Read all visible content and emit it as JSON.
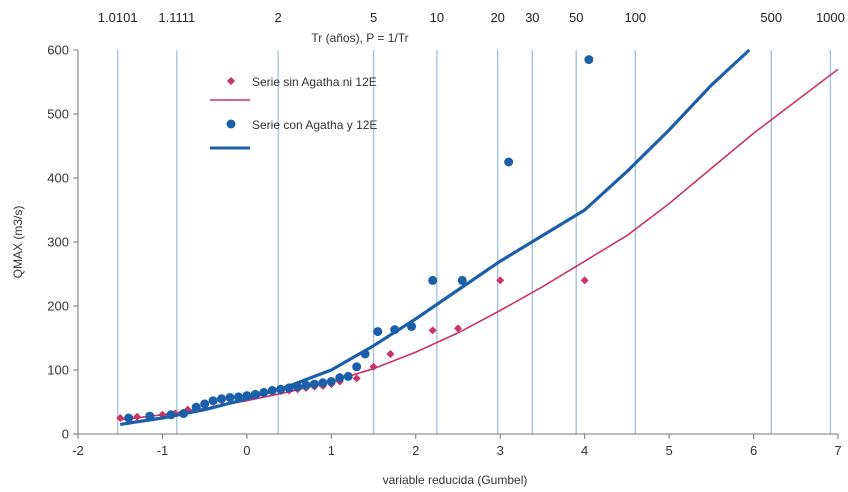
{
  "chart_data": {
    "type": "scatter",
    "xlabel": "variable reducida (Gumbel)",
    "ylabel": "QMAX (m3/s)",
    "top_axis_label": "Tr (años), P = 1/Tr",
    "xlim": [
      -2,
      7
    ],
    "ylim": [
      0,
      600
    ],
    "x_ticks": [
      "-2",
      "-1",
      "0",
      "1",
      "2",
      "3",
      "4",
      "5",
      "6",
      "7"
    ],
    "y_ticks": [
      "0",
      "100",
      "200",
      "300",
      "400",
      "500",
      "600"
    ],
    "top_ticks": [
      {
        "label": "1.0101",
        "x": -1.53
      },
      {
        "label": "1.1111",
        "x": -0.83
      },
      {
        "label": "2",
        "x": 0.37
      },
      {
        "label": "5",
        "x": 1.5
      },
      {
        "label": "10",
        "x": 2.25
      },
      {
        "label": "20",
        "x": 2.97
      },
      {
        "label": "30",
        "x": 3.38
      },
      {
        "label": "50",
        "x": 3.9
      },
      {
        "label": "100",
        "x": 4.6
      },
      {
        "label": "500",
        "x": 6.21
      },
      {
        "label": "1000",
        "x": 6.91
      }
    ],
    "grid": {
      "vertical_at_top_ticks": true,
      "horizontal": false
    },
    "legend_position": "top-left",
    "series": [
      {
        "name": "Serie sin Agatha ni 12E",
        "kind": "points",
        "marker": "diamond",
        "color": "#cc3366",
        "x": [
          -1.5,
          -1.3,
          -1.15,
          -1.0,
          -0.85,
          -0.7,
          -0.6,
          -0.5,
          -0.4,
          -0.3,
          -0.2,
          -0.1,
          0.0,
          0.1,
          0.2,
          0.3,
          0.4,
          0.5,
          0.6,
          0.7,
          0.8,
          0.9,
          1.0,
          1.1,
          1.3,
          1.5,
          1.7,
          2.2,
          2.5,
          3.0,
          4.0
        ],
        "y": [
          25,
          27,
          28,
          30,
          32,
          38,
          42,
          45,
          50,
          52,
          55,
          57,
          58,
          60,
          62,
          65,
          67,
          68,
          70,
          72,
          74,
          75,
          78,
          82,
          87,
          105,
          125,
          162,
          165,
          240,
          240
        ]
      },
      {
        "name": "",
        "kind": "line",
        "color": "#cc3366",
        "x": [
          -1.5,
          -1.0,
          -0.5,
          0.0,
          0.5,
          1.0,
          1.5,
          2.0,
          2.5,
          3.0,
          3.5,
          4.0,
          4.5,
          5.0,
          5.5,
          6.0,
          6.5,
          7.0
        ],
        "y": [
          22,
          30,
          40,
          52,
          66,
          82,
          102,
          128,
          158,
          193,
          230,
          270,
          310,
          360,
          415,
          470,
          520,
          570
        ]
      },
      {
        "name": "Serie con Agatha y 12E",
        "kind": "points",
        "marker": "circle",
        "color": "#1a5fa8",
        "x": [
          -1.4,
          -1.15,
          -0.9,
          -0.75,
          -0.6,
          -0.5,
          -0.4,
          -0.3,
          -0.2,
          -0.1,
          0.0,
          0.1,
          0.2,
          0.3,
          0.4,
          0.5,
          0.6,
          0.7,
          0.8,
          0.9,
          1.0,
          1.1,
          1.2,
          1.3,
          1.4,
          1.55,
          1.75,
          1.95,
          2.2,
          2.55,
          3.1,
          4.05
        ],
        "y": [
          25,
          28,
          30,
          32,
          42,
          47,
          52,
          55,
          57,
          58,
          60,
          62,
          65,
          68,
          70,
          72,
          74,
          76,
          78,
          80,
          82,
          88,
          90,
          105,
          125,
          160,
          163,
          168,
          240,
          240,
          425,
          585
        ]
      },
      {
        "name": "",
        "kind": "line",
        "color": "#1a5fa8",
        "x": [
          -1.5,
          -1.0,
          -0.5,
          0.0,
          0.5,
          1.0,
          1.5,
          2.0,
          2.5,
          3.0,
          3.5,
          4.0,
          4.5,
          5.0,
          5.5,
          5.95
        ],
        "y": [
          15,
          25,
          38,
          55,
          75,
          100,
          138,
          180,
          225,
          270,
          310,
          350,
          410,
          475,
          545,
          600
        ]
      }
    ]
  }
}
